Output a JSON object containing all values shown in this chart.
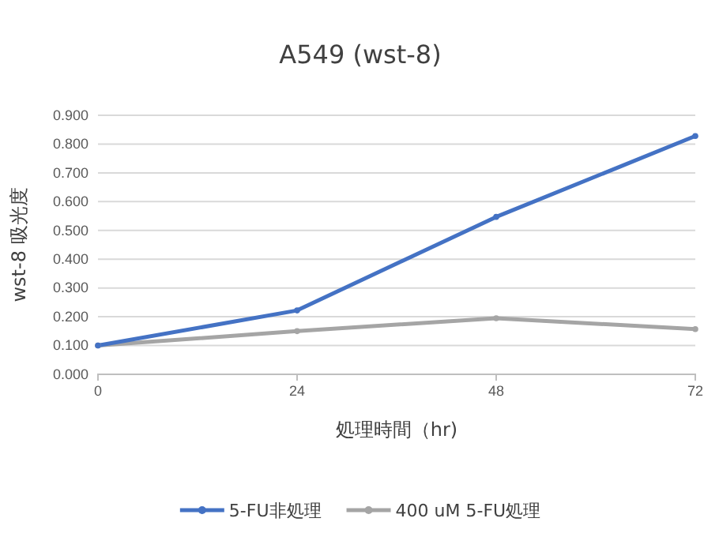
{
  "chart_data": {
    "type": "line",
    "title": "A549 (wst-8)",
    "xlabel": "処理時間（hr)",
    "ylabel": "wst-8 吸光度",
    "x": [
      0,
      24,
      48,
      72
    ],
    "series": [
      {
        "name": "5-FU非処理",
        "color": "#4472c4",
        "values": [
          0.1,
          0.222,
          0.547,
          0.828
        ]
      },
      {
        "name": "400 uM 5-FU処理",
        "color": "#a5a5a5",
        "values": [
          0.1,
          0.15,
          0.195,
          0.157
        ]
      }
    ],
    "xlim": [
      0,
      72
    ],
    "xticks": [
      0,
      24,
      48,
      72
    ],
    "ylim": [
      0,
      0.9
    ],
    "yticks": [
      {
        "value": 0,
        "label": "0.000"
      },
      {
        "value": 0.1,
        "label": "0.100"
      },
      {
        "value": 0.2,
        "label": "0.200"
      },
      {
        "value": 0.3,
        "label": "0.300"
      },
      {
        "value": 0.4,
        "label": "0.400"
      },
      {
        "value": 0.5,
        "label": "0.500"
      },
      {
        "value": 0.6,
        "label": "0.600"
      },
      {
        "value": 0.7,
        "label": "0.700"
      },
      {
        "value": 0.8,
        "label": "0.800"
      },
      {
        "value": 0.9,
        "label": "0.900"
      }
    ],
    "grid": "y",
    "legend": "bottom",
    "marker": "circle",
    "line_style": "solid"
  }
}
